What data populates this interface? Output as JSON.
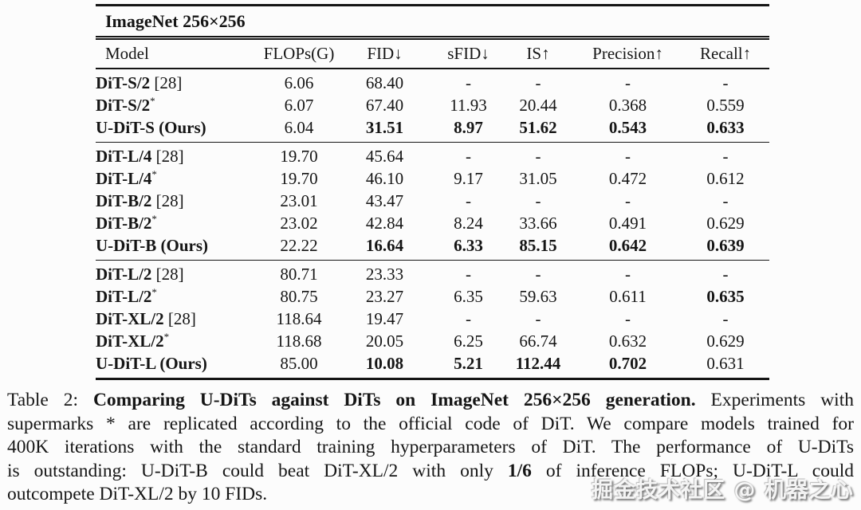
{
  "table": {
    "title": "ImageNet 256×256",
    "columns": [
      "Model",
      "FLOPs(G)",
      "FID↓",
      "sFID↓",
      "IS↑",
      "Precision↑",
      "Recall↑"
    ],
    "blocks": [
      {
        "rows": [
          {
            "model": "DiT-S/2",
            "sup": "",
            "ref": "[28]",
            "cells": [
              [
                "6.06",
                0
              ],
              [
                "68.40",
                0
              ],
              [
                "-",
                0
              ],
              [
                "-",
                0
              ],
              [
                "-",
                0
              ],
              [
                "-",
                0
              ]
            ]
          },
          {
            "model": "DiT-S/2",
            "sup": "*",
            "ref": "",
            "cells": [
              [
                "6.07",
                0
              ],
              [
                "67.40",
                0
              ],
              [
                "11.93",
                0
              ],
              [
                "20.44",
                0
              ],
              [
                "0.368",
                0
              ],
              [
                "0.559",
                0
              ]
            ]
          },
          {
            "model": "U-DiT-S (Ours)",
            "sup": "",
            "ref": "",
            "cells": [
              [
                "6.04",
                0
              ],
              [
                "31.51",
                1
              ],
              [
                "8.97",
                1
              ],
              [
                "51.62",
                1
              ],
              [
                "0.543",
                1
              ],
              [
                "0.633",
                1
              ]
            ]
          }
        ]
      },
      {
        "rows": [
          {
            "model": "DiT-L/4",
            "sup": "",
            "ref": "[28]",
            "cells": [
              [
                "19.70",
                0
              ],
              [
                "45.64",
                0
              ],
              [
                "-",
                0
              ],
              [
                "-",
                0
              ],
              [
                "-",
                0
              ],
              [
                "-",
                0
              ]
            ]
          },
          {
            "model": "DiT-L/4",
            "sup": "*",
            "ref": "",
            "cells": [
              [
                "19.70",
                0
              ],
              [
                "46.10",
                0
              ],
              [
                "9.17",
                0
              ],
              [
                "31.05",
                0
              ],
              [
                "0.472",
                0
              ],
              [
                "0.612",
                0
              ]
            ]
          },
          {
            "model": "DiT-B/2",
            "sup": "",
            "ref": "[28]",
            "cells": [
              [
                "23.01",
                0
              ],
              [
                "43.47",
                0
              ],
              [
                "-",
                0
              ],
              [
                "-",
                0
              ],
              [
                "-",
                0
              ],
              [
                "-",
                0
              ]
            ]
          },
          {
            "model": "DiT-B/2",
            "sup": "*",
            "ref": "",
            "cells": [
              [
                "23.02",
                0
              ],
              [
                "42.84",
                0
              ],
              [
                "8.24",
                0
              ],
              [
                "33.66",
                0
              ],
              [
                "0.491",
                0
              ],
              [
                "0.629",
                0
              ]
            ]
          },
          {
            "model": "U-DiT-B (Ours)",
            "sup": "",
            "ref": "",
            "cells": [
              [
                "22.22",
                0
              ],
              [
                "16.64",
                1
              ],
              [
                "6.33",
                1
              ],
              [
                "85.15",
                1
              ],
              [
                "0.642",
                1
              ],
              [
                "0.639",
                1
              ]
            ]
          }
        ]
      },
      {
        "rows": [
          {
            "model": "DiT-L/2",
            "sup": "",
            "ref": "[28]",
            "cells": [
              [
                "80.71",
                0
              ],
              [
                "23.33",
                0
              ],
              [
                "-",
                0
              ],
              [
                "-",
                0
              ],
              [
                "-",
                0
              ],
              [
                "-",
                0
              ]
            ]
          },
          {
            "model": "DiT-L/2",
            "sup": "*",
            "ref": "",
            "cells": [
              [
                "80.75",
                0
              ],
              [
                "23.27",
                0
              ],
              [
                "6.35",
                0
              ],
              [
                "59.63",
                0
              ],
              [
                "0.611",
                0
              ],
              [
                "0.635",
                1
              ]
            ]
          },
          {
            "model": "DiT-XL/2",
            "sup": "",
            "ref": "[28]",
            "cells": [
              [
                "118.64",
                0
              ],
              [
                "19.47",
                0
              ],
              [
                "-",
                0
              ],
              [
                "-",
                0
              ],
              [
                "-",
                0
              ],
              [
                "-",
                0
              ]
            ]
          },
          {
            "model": "DiT-XL/2",
            "sup": "*",
            "ref": "",
            "cells": [
              [
                "118.68",
                0
              ],
              [
                "20.05",
                0
              ],
              [
                "6.25",
                0
              ],
              [
                "66.74",
                0
              ],
              [
                "0.632",
                0
              ],
              [
                "0.629",
                0
              ]
            ]
          },
          {
            "model": "U-DiT-L (Ours)",
            "sup": "",
            "ref": "",
            "cells": [
              [
                "85.00",
                0
              ],
              [
                "10.08",
                1
              ],
              [
                "5.21",
                1
              ],
              [
                "112.44",
                1
              ],
              [
                "0.702",
                1
              ],
              [
                "0.631",
                0
              ]
            ]
          }
        ]
      }
    ]
  },
  "caption": {
    "lines": [
      {
        "segments": [
          {
            "t": "Table 2: ",
            "b": false
          },
          {
            "t": "Comparing U-DiTs against DiTs on ImageNet 256×256 generation.",
            "b": true
          },
          {
            "t": " Experiments with",
            "b": false
          }
        ]
      },
      {
        "segments": [
          {
            "t": "supermarks * are replicated according to the official code of DiT. We compare models trained for",
            "b": false
          }
        ]
      },
      {
        "segments": [
          {
            "t": "400K iterations with the standard training hyperparameters of DiT. The performance of U-DiTs",
            "b": false
          }
        ]
      },
      {
        "segments": [
          {
            "t": "is outstanding: U-DiT-B could beat DiT-XL/2 with only ",
            "b": false
          },
          {
            "t": "1/6",
            "b": true
          },
          {
            "t": " of inference FLOPs; U-DiT-L could",
            "b": false
          }
        ]
      },
      {
        "segments": [
          {
            "t": "outcompete DiT-XL/2 by 10 FIDs.",
            "b": false
          }
        ]
      }
    ]
  },
  "watermark": "掘金技术社区 @ 机器之心",
  "colors": {
    "text": "#151515",
    "background": "#fcfcfc",
    "rule": "#151515"
  }
}
